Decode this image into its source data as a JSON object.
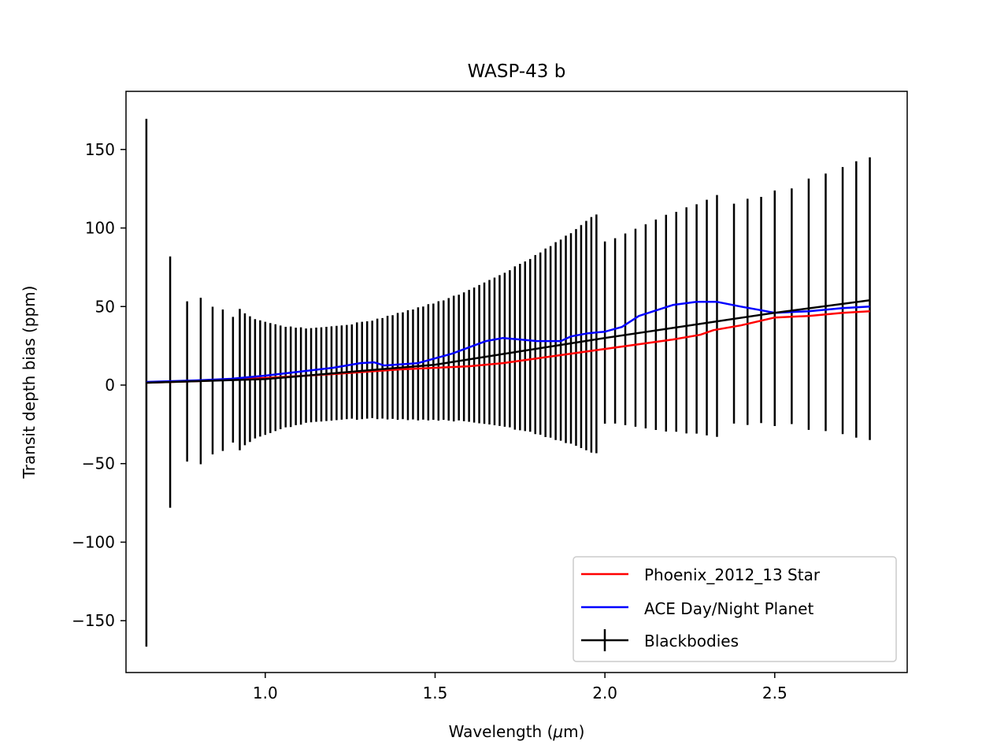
{
  "chart_data": {
    "type": "line",
    "title": "WASP-43 b",
    "xlabel_prefix": "Wavelength (",
    "xlabel_mu": "μ",
    "xlabel_suffix": "m)",
    "ylabel": "Transit depth bias (ppm)",
    "xlim": [
      0.59,
      2.89
    ],
    "ylim": [
      -183,
      187
    ],
    "xticks": [
      1.0,
      1.5,
      2.0,
      2.5
    ],
    "xtick_labels": [
      "1.0",
      "1.5",
      "2.0",
      "2.5"
    ],
    "yticks": [
      -150,
      -100,
      -50,
      0,
      50,
      100,
      150
    ],
    "ytick_labels": [
      "−150",
      "−100",
      "−50",
      "0",
      "50",
      "100",
      "150"
    ],
    "grid": false,
    "legend_position": "lower-right",
    "series": [
      {
        "name": "Phoenix_2012_13 Star",
        "color": "#ff0000",
        "x": [
          0.65,
          0.8,
          1.0,
          1.2,
          1.4,
          1.6,
          1.7,
          1.8,
          1.9,
          2.0,
          2.1,
          2.2,
          2.28,
          2.32,
          2.4,
          2.5,
          2.6,
          2.7,
          2.78
        ],
        "y": [
          1.5,
          2.5,
          4.5,
          7,
          10,
          12,
          14,
          17,
          20,
          23,
          26,
          29,
          32,
          35,
          38,
          43,
          44,
          46,
          47
        ]
      },
      {
        "name": "ACE Day/Night Planet",
        "color": "#0000ff",
        "x": [
          0.65,
          0.8,
          0.9,
          1.0,
          1.1,
          1.2,
          1.28,
          1.32,
          1.35,
          1.45,
          1.55,
          1.65,
          1.7,
          1.75,
          1.8,
          1.87,
          1.9,
          1.95,
          2.0,
          2.05,
          2.1,
          2.2,
          2.27,
          2.33,
          2.4,
          2.45,
          2.5,
          2.6,
          2.7,
          2.78
        ],
        "y": [
          2,
          3,
          4,
          6,
          8.5,
          11,
          14,
          14.5,
          12.5,
          14,
          20,
          28,
          30,
          29,
          28,
          28,
          31,
          33,
          34,
          37,
          44,
          51,
          53,
          53,
          50,
          48,
          46,
          47,
          49,
          50
        ]
      },
      {
        "name": "Blackbodies",
        "color": "#000000",
        "x": [
          0.65,
          1.0,
          1.5,
          2.0,
          2.5,
          2.78
        ],
        "y": [
          1.5,
          3.8,
          13,
          30,
          46,
          54
        ]
      }
    ],
    "errorbars": {
      "series": "Blackbodies",
      "color": "#000000",
      "x": [
        0.65,
        0.72,
        0.77,
        0.81,
        0.845,
        0.875,
        0.905,
        0.925,
        0.94,
        0.955,
        0.97,
        0.985,
        1.0,
        1.015,
        1.03,
        1.045,
        1.06,
        1.075,
        1.09,
        1.105,
        1.12,
        1.135,
        1.15,
        1.165,
        1.18,
        1.195,
        1.21,
        1.225,
        1.24,
        1.255,
        1.27,
        1.285,
        1.3,
        1.315,
        1.33,
        1.345,
        1.36,
        1.375,
        1.39,
        1.405,
        1.42,
        1.435,
        1.45,
        1.465,
        1.48,
        1.495,
        1.51,
        1.525,
        1.54,
        1.555,
        1.57,
        1.585,
        1.6,
        1.615,
        1.63,
        1.645,
        1.66,
        1.675,
        1.69,
        1.705,
        1.72,
        1.735,
        1.75,
        1.765,
        1.78,
        1.795,
        1.81,
        1.825,
        1.84,
        1.855,
        1.87,
        1.885,
        1.9,
        1.915,
        1.93,
        1.945,
        1.96,
        1.975,
        2.0,
        2.03,
        2.06,
        2.09,
        2.12,
        2.15,
        2.18,
        2.21,
        2.24,
        2.27,
        2.3,
        2.33,
        2.38,
        2.42,
        2.46,
        2.5,
        2.55,
        2.6,
        2.65,
        2.7,
        2.74,
        2.78
      ],
      "y": [
        1.5,
        1.9,
        2.3,
        2.6,
        2.9,
        3.1,
        3.4,
        3.5,
        3.7,
        3.8,
        4.0,
        4.2,
        4.3,
        4.5,
        4.7,
        4.9,
        5.1,
        5.3,
        5.5,
        5.8,
        6.0,
        6.3,
        6.6,
        6.8,
        7.1,
        7.4,
        7.7,
        8.0,
        8.3,
        8.6,
        8.9,
        9.3,
        9.6,
        10.0,
        10.3,
        10.7,
        11.1,
        11.5,
        11.9,
        12.3,
        12.7,
        13.1,
        13.5,
        14.0,
        14.5,
        14.9,
        15.4,
        15.9,
        16.4,
        16.9,
        17.5,
        18.0,
        18.6,
        19.1,
        19.7,
        20.3,
        20.9,
        21.4,
        22.0,
        22.5,
        23.1,
        23.6,
        24.2,
        24.7,
        25.3,
        25.8,
        26.4,
        26.9,
        27.5,
        28.0,
        28.6,
        29.1,
        29.7,
        30.3,
        30.9,
        31.5,
        32.0,
        32.6,
        33.4,
        34.5,
        35.5,
        36.5,
        37.4,
        38.4,
        39.4,
        40.3,
        41.2,
        42.1,
        43.0,
        44.0,
        45.5,
        46.6,
        47.8,
        48.9,
        50.2,
        51.5,
        52.7,
        53.8,
        54.5,
        55.0
      ],
      "yerr": [
        168,
        80,
        51,
        53,
        47,
        45,
        40,
        45,
        42,
        40,
        38,
        37,
        36,
        35,
        34,
        33,
        32,
        32,
        31,
        31,
        30,
        30,
        30,
        30,
        30,
        30,
        30,
        30,
        30,
        30,
        31,
        31,
        31,
        31,
        32,
        32,
        33,
        33,
        34,
        34,
        35,
        35,
        36,
        36,
        37,
        37,
        38,
        38,
        39,
        40,
        40,
        41,
        42,
        43,
        44,
        45,
        46,
        47,
        48,
        49,
        50,
        52,
        53,
        54,
        55,
        57,
        58,
        60,
        61,
        63,
        64,
        66,
        67,
        69,
        71,
        73,
        75,
        76,
        58,
        59,
        61,
        63,
        65,
        67,
        69,
        70,
        72,
        73,
        75,
        77,
        70,
        72,
        72,
        75,
        75,
        80,
        82,
        85,
        88,
        90
      ]
    }
  }
}
